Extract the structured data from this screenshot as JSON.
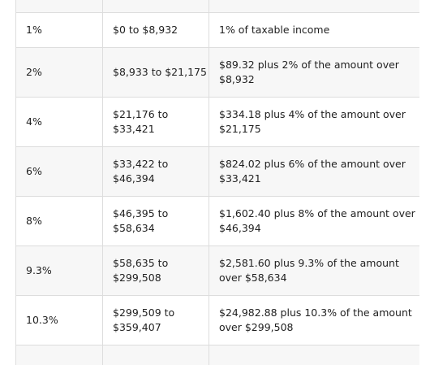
{
  "table": {
    "rows": [
      {
        "rate": "1%",
        "income": "$0 to $8,932",
        "tax": "1% of taxable income"
      },
      {
        "rate": "2%",
        "income": "$8,933 to $21,175",
        "tax": "$89.32 plus 2% of the amount over $8,932"
      },
      {
        "rate": "4%",
        "income": "$21,176 to $33,421",
        "tax": "$334.18 plus 4% of the amount over $21,175"
      },
      {
        "rate": "6%",
        "income": "$33,422 to $46,394",
        "tax": "$824.02 plus 6% of the amount over $33,421"
      },
      {
        "rate": "8%",
        "income": "$46,395 to $58,634",
        "tax": "$1,602.40 plus 8% of the amount over $46,394"
      },
      {
        "rate": "9.3%",
        "income": "$58,635 to $299,508",
        "tax": "$2,581.60 plus 9.3% of the amount over $58,634"
      },
      {
        "rate": "10.3%",
        "income": "$299,509 to $359,407",
        "tax": "$24,982.88 plus 10.3% of the amount over $299,508"
      }
    ]
  }
}
